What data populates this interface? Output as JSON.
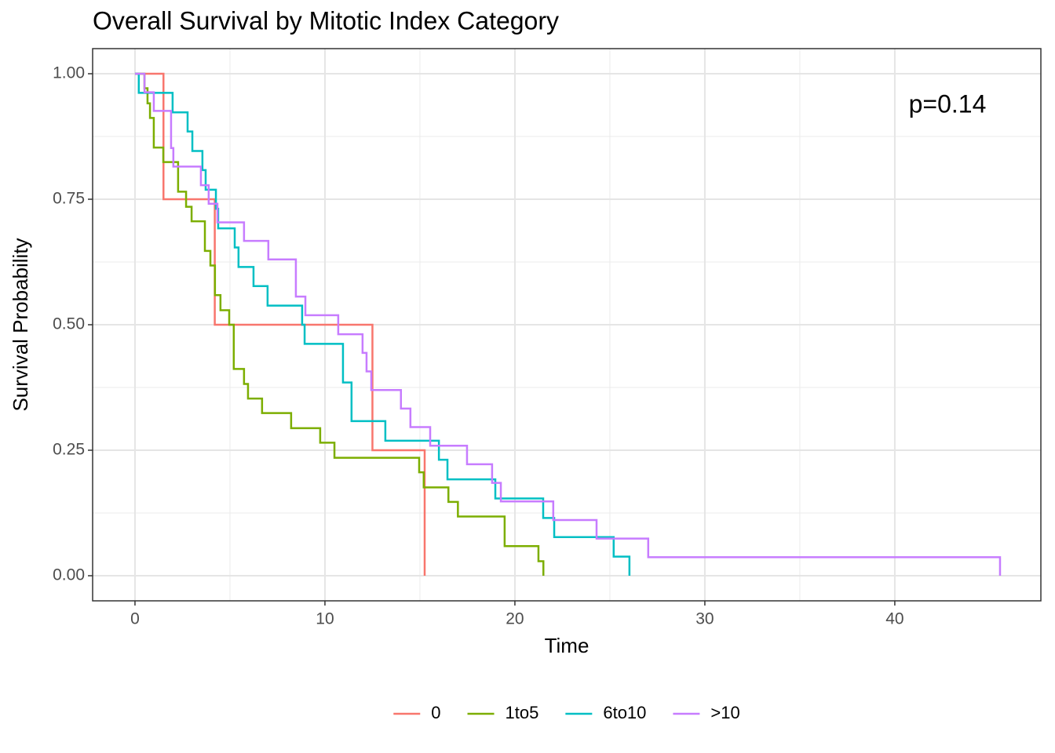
{
  "chart_data": {
    "type": "step-line",
    "title": "Overall Survival by Mitotic Index Category",
    "xlabel": "Time",
    "ylabel": "Survival Probability",
    "annotation": "p=0.14",
    "xlim": [
      -2.23,
      47.69
    ],
    "ylim": [
      -0.05,
      1.05
    ],
    "xticks": [
      0,
      10,
      20,
      30,
      40
    ],
    "yticks": [
      {
        "value": 0,
        "label": "0.00"
      },
      {
        "value": 0.25,
        "label": "0.25"
      },
      {
        "value": 0.5,
        "label": "0.50"
      },
      {
        "value": 0.75,
        "label": "0.75"
      },
      {
        "value": 1,
        "label": "1.00"
      }
    ],
    "grid": true,
    "legend": "bottom",
    "series": [
      {
        "name": "0",
        "color": "#F8766D",
        "x": [
          0,
          1.5,
          1.5,
          4.2,
          4.2,
          12.5,
          12.5,
          15.25,
          15.25
        ],
        "values": [
          1,
          1,
          0.75,
          0.75,
          0.5,
          0.5,
          0.25,
          0.25,
          0
        ]
      },
      {
        "name": "1to5",
        "color": "#7CAE00",
        "x": [
          0,
          0.5,
          0.5,
          0.66,
          0.66,
          0.79,
          0.79,
          0.99,
          0.99,
          1.49,
          1.49,
          2.27,
          2.27,
          2.69,
          2.69,
          2.98,
          2.98,
          3.68,
          3.68,
          3.97,
          3.97,
          4.21,
          4.21,
          4.5,
          4.5,
          4.96,
          4.96,
          5.2,
          5.2,
          5.74,
          5.74,
          5.95,
          5.95,
          6.69,
          6.69,
          8.22,
          8.22,
          9.75,
          9.75,
          10.5,
          10.5,
          14.96,
          14.96,
          15.2,
          15.2,
          16.5,
          16.5,
          17.0,
          17.0,
          19.46,
          19.46,
          21.24,
          21.24,
          21.5,
          21.5
        ],
        "values": [
          1,
          1,
          0.971,
          0.971,
          0.941,
          0.941,
          0.912,
          0.912,
          0.853,
          0.853,
          0.824,
          0.824,
          0.765,
          0.765,
          0.735,
          0.735,
          0.706,
          0.706,
          0.647,
          0.647,
          0.618,
          0.618,
          0.559,
          0.559,
          0.529,
          0.529,
          0.5,
          0.5,
          0.412,
          0.412,
          0.382,
          0.382,
          0.353,
          0.353,
          0.324,
          0.324,
          0.294,
          0.294,
          0.265,
          0.265,
          0.235,
          0.235,
          0.206,
          0.206,
          0.176,
          0.176,
          0.147,
          0.147,
          0.118,
          0.118,
          0.059,
          0.059,
          0.029,
          0.029,
          0
        ]
      },
      {
        "name": "6to10",
        "color": "#00BFC4",
        "x": [
          0,
          0.2,
          0.2,
          1.98,
          1.98,
          2.77,
          2.77,
          3.02,
          3.02,
          3.55,
          3.55,
          3.72,
          3.72,
          4.26,
          4.26,
          4.38,
          4.38,
          5.25,
          5.25,
          5.45,
          5.45,
          6.24,
          6.24,
          6.98,
          6.98,
          8.8,
          8.8,
          8.93,
          8.93,
          10.95,
          10.95,
          11.4,
          11.4,
          13.18,
          13.18,
          16.0,
          16.0,
          16.45,
          16.45,
          18.97,
          18.97,
          21.49,
          21.49,
          22.07,
          22.07,
          25.2,
          25.2,
          26.03,
          26.03
        ],
        "values": [
          1,
          1,
          0.962,
          0.962,
          0.923,
          0.923,
          0.885,
          0.885,
          0.846,
          0.846,
          0.808,
          0.808,
          0.769,
          0.769,
          0.731,
          0.731,
          0.692,
          0.692,
          0.654,
          0.654,
          0.615,
          0.615,
          0.577,
          0.577,
          0.538,
          0.538,
          0.5,
          0.5,
          0.462,
          0.462,
          0.385,
          0.385,
          0.308,
          0.308,
          0.269,
          0.269,
          0.231,
          0.231,
          0.192,
          0.192,
          0.154,
          0.154,
          0.115,
          0.115,
          0.077,
          0.077,
          0.038,
          0.038,
          0
        ]
      },
      {
        "name": ">10",
        "color": "#C77CFF",
        "x": [
          0,
          0.5,
          0.5,
          0.99,
          0.99,
          1.9,
          1.9,
          2.02,
          2.02,
          3.47,
          3.47,
          3.88,
          3.88,
          4.34,
          4.34,
          5.74,
          5.74,
          7.02,
          7.02,
          8.47,
          8.47,
          8.97,
          8.97,
          10.7,
          10.7,
          11.98,
          11.98,
          12.19,
          12.19,
          12.44,
          12.44,
          14.0,
          14.0,
          14.5,
          14.5,
          15.54,
          15.54,
          17.48,
          17.48,
          18.8,
          18.8,
          19.26,
          19.26,
          22.02,
          22.02,
          24.3,
          24.3,
          27.02,
          27.02,
          45.54,
          45.54
        ],
        "values": [
          1,
          1,
          0.963,
          0.963,
          0.926,
          0.926,
          0.852,
          0.852,
          0.815,
          0.815,
          0.778,
          0.778,
          0.741,
          0.741,
          0.704,
          0.704,
          0.667,
          0.667,
          0.63,
          0.63,
          0.556,
          0.556,
          0.519,
          0.519,
          0.481,
          0.481,
          0.444,
          0.444,
          0.407,
          0.407,
          0.37,
          0.37,
          0.333,
          0.333,
          0.296,
          0.296,
          0.259,
          0.259,
          0.222,
          0.222,
          0.185,
          0.185,
          0.148,
          0.148,
          0.111,
          0.111,
          0.074,
          0.074,
          0.037,
          0.037,
          0
        ]
      }
    ]
  }
}
